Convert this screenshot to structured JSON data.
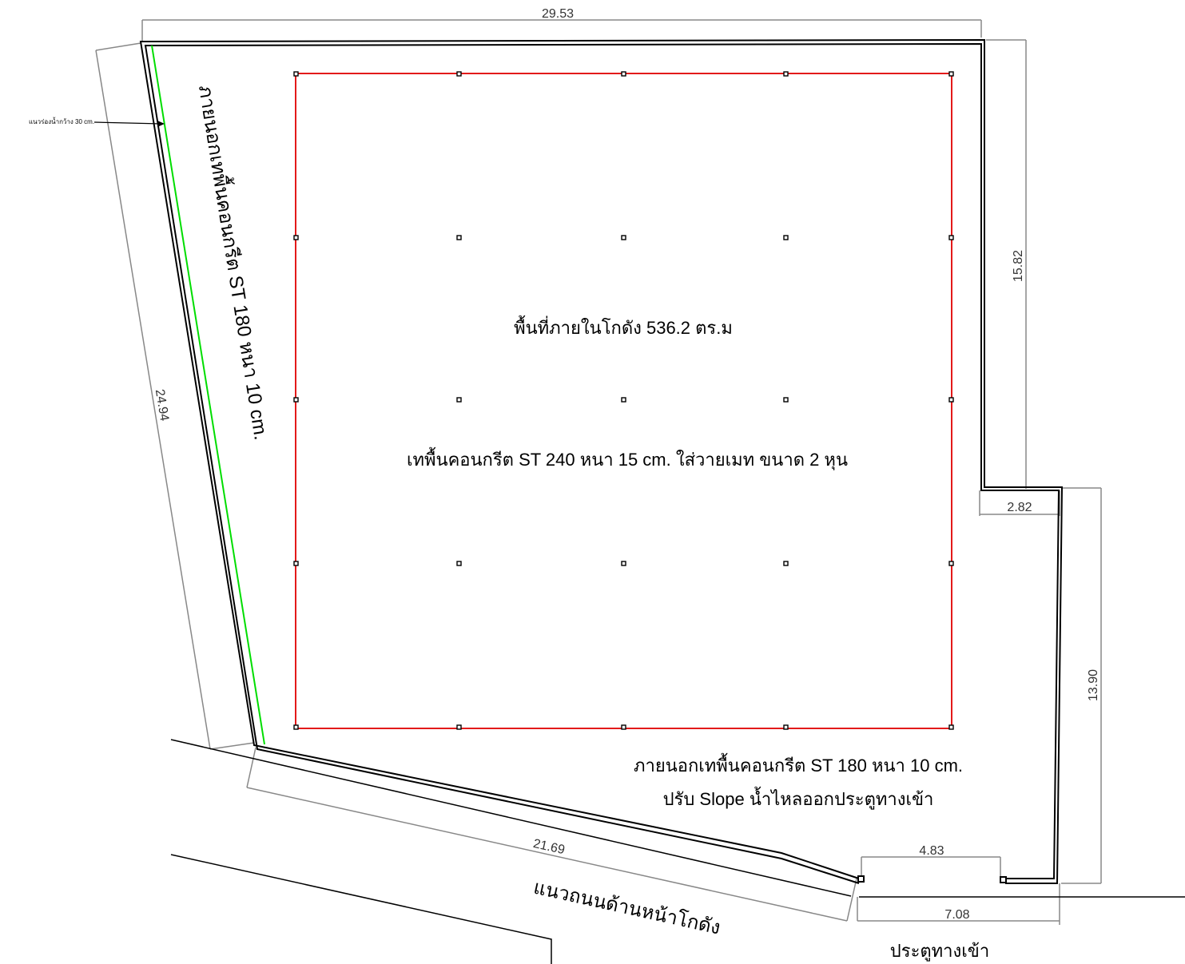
{
  "dimensions": {
    "top": "29.53",
    "right_upper": "15.82",
    "step": "2.82",
    "right_lower": "13.90",
    "left": "24.94",
    "bottom": "21.69",
    "door_inner": "4.83",
    "door_outer": "7.08"
  },
  "labels": {
    "inner_area": "พื้นที่ภายในโกดัง 536.2 ตร.ม",
    "inner_spec": "เทพื้นคอนกรีต ST 240  หนา 15 cm. ใส่วายเมท ขนาด 2 หุน",
    "outer_spec_line1": "ภายนอกเทพื้นคอนกรีต ST 180 หนา 10 cm.",
    "outer_spec_line2": "ปรับ Slope น้ำไหลออกประตูทางเข้า",
    "left_side_spec": "ภายนอกเทพื้นคอนกรีต ST 180 หนา 10 cm.",
    "drain": "แนวร่องน้ำกว้าง 30 cm.",
    "road": "แนวถนนด้านหน้าโกดัง",
    "entrance": "ประตูทางเข้า"
  },
  "colors": {
    "wall": "#000000",
    "inner_area_outline": "#e00000",
    "drain_line": "#00dd00",
    "dimension_line": "#888888"
  }
}
